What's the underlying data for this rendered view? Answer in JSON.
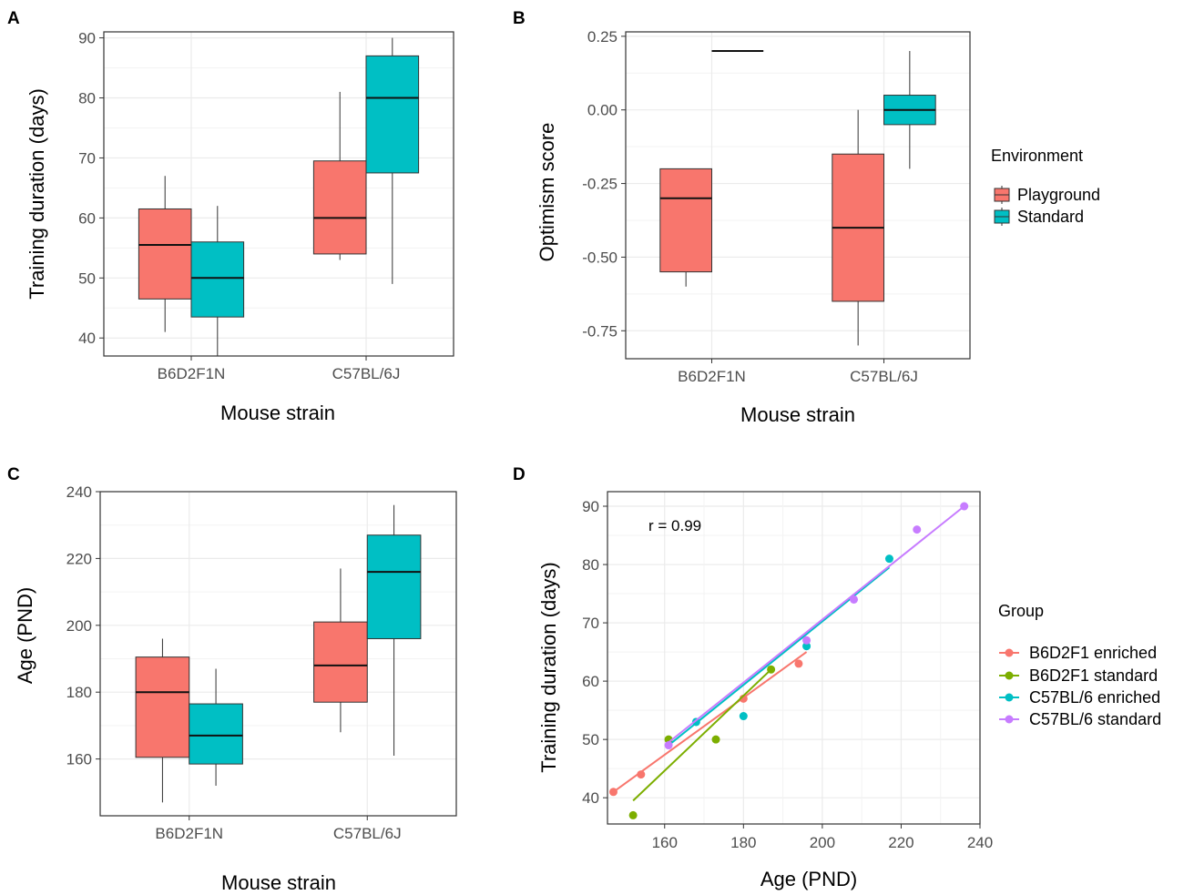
{
  "panel_labels": [
    "A",
    "B",
    "C",
    "D"
  ],
  "colors": {
    "playground": "#f8766d",
    "standard": "#00bfc4",
    "b6_enriched": "#f8766d",
    "b6_standard": "#7cae00",
    "c57_enriched": "#00bfc4",
    "c57_standard": "#c77cff"
  },
  "legend_environment": {
    "title": "Environment",
    "items": [
      {
        "label": "Playground",
        "color": "#f8766d"
      },
      {
        "label": "Standard",
        "color": "#00bfc4"
      }
    ]
  },
  "legend_group": {
    "title": "Group",
    "items": [
      {
        "label": "B6D2F1 enriched",
        "color": "#f8766d"
      },
      {
        "label": "B6D2F1 standard",
        "color": "#7cae00"
      },
      {
        "label": "C57BL/6 enriched",
        "color": "#00bfc4"
      },
      {
        "label": "C57BL/6 standard",
        "color": "#c77cff"
      }
    ]
  },
  "chart_data": [
    {
      "panel": "A",
      "type": "box",
      "xlabel": "Mouse strain",
      "ylabel": "Training duration (days)",
      "categories": [
        "B6D2F1N",
        "C57BL/6J"
      ],
      "ylim": [
        37,
        91
      ],
      "yticks": [
        40,
        50,
        60,
        70,
        80,
        90
      ],
      "series": [
        {
          "name": "Playground",
          "boxes": [
            {
              "min": 41,
              "q1": 46.5,
              "median": 55.5,
              "q3": 61.5,
              "max": 67
            },
            {
              "min": 53,
              "q1": 54,
              "median": 60,
              "q3": 69.5,
              "max": 81
            }
          ]
        },
        {
          "name": "Standard",
          "boxes": [
            {
              "min": 37,
              "q1": 43.5,
              "median": 50,
              "q3": 56,
              "max": 62
            },
            {
              "min": 49,
              "q1": 67.5,
              "median": 80,
              "q3": 87,
              "max": 90
            }
          ]
        }
      ]
    },
    {
      "panel": "B",
      "type": "box",
      "xlabel": "Mouse strain",
      "ylabel": "Optimism score",
      "categories": [
        "B6D2F1N",
        "C57BL/6J"
      ],
      "ylim": [
        -0.845,
        0.265
      ],
      "yticks": [
        0.25,
        0.0,
        -0.25,
        -0.5,
        -0.75
      ],
      "ytick_labels": [
        "0.25",
        "0.00",
        "-0.25",
        "-0.50",
        "-0.75"
      ],
      "series": [
        {
          "name": "Playground",
          "boxes": [
            {
              "min": -0.6,
              "q1": -0.55,
              "median": -0.3,
              "q3": -0.2,
              "max": -0.2
            },
            {
              "min": -0.8,
              "q1": -0.65,
              "median": -0.4,
              "q3": -0.15,
              "max": 0.0
            }
          ]
        },
        {
          "name": "Standard",
          "boxes": [
            {
              "min": 0.2,
              "q1": 0.2,
              "median": 0.2,
              "q3": 0.2,
              "max": 0.2
            },
            {
              "min": -0.2,
              "q1": -0.05,
              "median": 0.0,
              "q3": 0.05,
              "max": 0.2
            }
          ]
        }
      ]
    },
    {
      "panel": "C",
      "type": "box",
      "xlabel": "Mouse strain",
      "ylabel": "Age (PND)",
      "categories": [
        "B6D2F1N",
        "C57BL/6J"
      ],
      "ylim": [
        143,
        240
      ],
      "yticks": [
        160,
        180,
        200,
        220,
        240
      ],
      "series": [
        {
          "name": "Playground",
          "boxes": [
            {
              "min": 147,
              "q1": 160.5,
              "median": 180,
              "q3": 190.5,
              "max": 196
            },
            {
              "min": 168,
              "q1": 177,
              "median": 188,
              "q3": 201,
              "max": 217
            }
          ]
        },
        {
          "name": "Standard",
          "boxes": [
            {
              "min": 152,
              "q1": 158.5,
              "median": 167,
              "q3": 176.5,
              "max": 187
            },
            {
              "min": 161,
              "q1": 196,
              "median": 216,
              "q3": 227,
              "max": 236
            }
          ]
        }
      ]
    },
    {
      "panel": "D",
      "type": "scatter",
      "xlabel": "Age (PND)",
      "ylabel": "Training duration (days)",
      "annotation": "r = 0.99",
      "xlim": [
        145.5,
        240
      ],
      "ylim": [
        35.5,
        92.5
      ],
      "xticks": [
        160,
        180,
        200,
        220,
        240
      ],
      "yticks": [
        40,
        50,
        60,
        70,
        80,
        90
      ],
      "series": [
        {
          "name": "B6D2F1 enriched",
          "x": [
            147,
            154,
            180,
            194
          ],
          "y": [
            41,
            44,
            57,
            63
          ],
          "fit": [
            [
              147,
              41
            ],
            [
              196,
              65
            ]
          ]
        },
        {
          "name": "B6D2F1 standard",
          "x": [
            152,
            161,
            173,
            187
          ],
          "y": [
            37,
            50,
            50,
            62
          ],
          "fit": [
            [
              152,
              39.5
            ],
            [
              187,
              62
            ]
          ]
        },
        {
          "name": "C57BL/6 enriched",
          "x": [
            168,
            180,
            196,
            217
          ],
          "y": [
            53,
            54,
            66,
            81
          ],
          "fit": [
            [
              161,
              49
            ],
            [
              217,
              79.5
            ]
          ]
        },
        {
          "name": "C57BL/6 standard",
          "x": [
            161,
            196,
            208,
            224,
            236
          ],
          "y": [
            49,
            67,
            74,
            86,
            90
          ],
          "fit": [
            [
              161,
              49.5
            ],
            [
              236,
              90
            ]
          ]
        }
      ]
    }
  ]
}
